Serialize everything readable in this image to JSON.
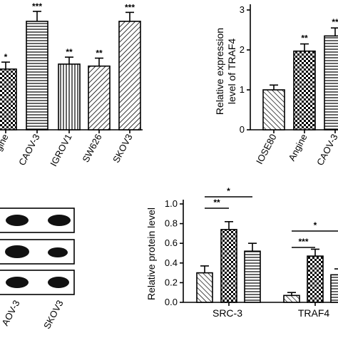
{
  "chart_data": [
    {
      "type": "bar",
      "title": "",
      "xlabel": "",
      "ylabel": "",
      "categories": [
        "Angine",
        "CAOV-3",
        "IGROV1",
        "SW626",
        "SKOV3"
      ],
      "values": [
        3.05,
        5.45,
        3.3,
        3.2,
        5.45
      ],
      "errors": [
        0.35,
        0.5,
        0.35,
        0.4,
        0.45
      ],
      "significance": [
        "*",
        "***",
        "**",
        "**",
        "***"
      ],
      "patterns": [
        "checker",
        "hlines",
        "vlines",
        "diag",
        "diag"
      ],
      "ylim": [
        0,
        6
      ]
    },
    {
      "type": "bar",
      "title": "",
      "xlabel": "",
      "ylabel": "Relative expression level of TRAF4",
      "ylabel_lines": [
        "Relative expression",
        "level of TRAF4"
      ],
      "categories": [
        "IOSE80",
        "Angine",
        "CAOV-3"
      ],
      "values": [
        1.0,
        1.97,
        2.35
      ],
      "errors": [
        0.12,
        0.18,
        0.2
      ],
      "significance": [
        "",
        "**",
        "**"
      ],
      "patterns": [
        "backdiag",
        "checker",
        "hlines"
      ],
      "ylim": [
        0,
        3
      ],
      "yticks": [
        "0",
        "1",
        "2",
        "3"
      ]
    },
    {
      "type": "blot",
      "lane_labels": [
        "AOV-3",
        "SKOV3"
      ]
    },
    {
      "type": "bar",
      "title": "",
      "xlabel": "",
      "ylabel": "Relative protein level",
      "categories": [
        "SRC-3",
        "TRAF4"
      ],
      "series": [
        {
          "values": [
            0.3,
            0.07
          ],
          "errors": [
            0.07,
            0.03
          ]
        },
        {
          "values": [
            0.74,
            0.47
          ],
          "errors": [
            0.08,
            0.07
          ]
        },
        {
          "values": [
            0.52,
            0.28
          ],
          "errors": [
            0.08,
            0.06
          ]
        }
      ],
      "patterns": [
        "backdiag",
        "checker",
        "hlines"
      ],
      "brackets": [
        {
          "category": "SRC-3",
          "from_series": 0,
          "to_series": 1,
          "label": "**"
        },
        {
          "category": "SRC-3",
          "from_series": 0,
          "to_series": 2,
          "label": "*"
        },
        {
          "category": "TRAF4",
          "from_series": 0,
          "to_series": 1,
          "label": "***"
        },
        {
          "category": "TRAF4",
          "from_series": 0,
          "to_series": 2,
          "label": "*"
        }
      ],
      "ylim": [
        0,
        1.0
      ],
      "yticks": [
        "0.0",
        "0.2",
        "0.4",
        "0.6",
        "0.8",
        "1.0"
      ]
    }
  ]
}
